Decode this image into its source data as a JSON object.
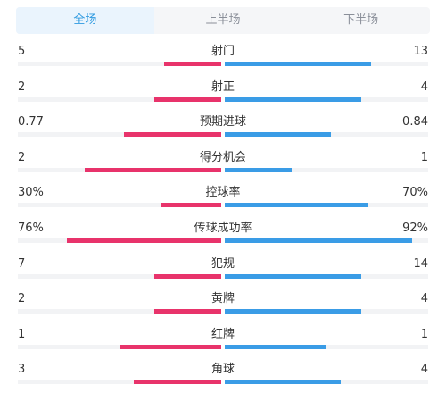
{
  "tabs": [
    {
      "label": "全场",
      "active": true
    },
    {
      "label": "上半场",
      "active": false
    },
    {
      "label": "下半场",
      "active": false
    }
  ],
  "colors": {
    "home": "#e8336b",
    "away": "#3a9ce6",
    "accent": "#2f9ae0"
  },
  "stats": [
    {
      "label": "射门",
      "home": "5",
      "away": "13",
      "home_frac": 0.28,
      "away_frac": 0.72
    },
    {
      "label": "射正",
      "home": "2",
      "away": "4",
      "home_frac": 0.33,
      "away_frac": 0.67
    },
    {
      "label": "预期进球",
      "home": "0.77",
      "away": "0.84",
      "home_frac": 0.48,
      "away_frac": 0.52
    },
    {
      "label": "得分机会",
      "home": "2",
      "away": "1",
      "home_frac": 0.67,
      "away_frac": 0.33
    },
    {
      "label": "控球率",
      "home": "30%",
      "away": "70%",
      "home_frac": 0.3,
      "away_frac": 0.7
    },
    {
      "label": "传球成功率",
      "home": "76%",
      "away": "92%",
      "home_frac": 0.76,
      "away_frac": 0.92
    },
    {
      "label": "犯规",
      "home": "7",
      "away": "14",
      "home_frac": 0.33,
      "away_frac": 0.67
    },
    {
      "label": "黄牌",
      "home": "2",
      "away": "4",
      "home_frac": 0.33,
      "away_frac": 0.67
    },
    {
      "label": "红牌",
      "home": "1",
      "away": "1",
      "home_frac": 0.5,
      "away_frac": 0.5
    },
    {
      "label": "角球",
      "home": "3",
      "away": "4",
      "home_frac": 0.43,
      "away_frac": 0.57
    }
  ]
}
